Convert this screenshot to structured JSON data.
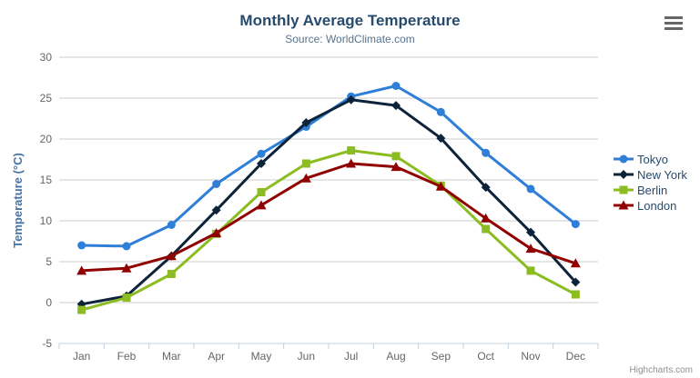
{
  "chart_data": {
    "type": "line",
    "title": "Monthly Average Temperature",
    "subtitle": "Source: WorldClimate.com",
    "xlabel": "",
    "ylabel": "Temperature (°C)",
    "categories": [
      "Jan",
      "Feb",
      "Mar",
      "Apr",
      "May",
      "Jun",
      "Jul",
      "Aug",
      "Sep",
      "Oct",
      "Nov",
      "Dec"
    ],
    "yticks": [
      -5,
      0,
      5,
      10,
      15,
      20,
      25,
      30
    ],
    "ylim": [
      -5,
      30
    ],
    "grid": true,
    "legend_position": "right",
    "series": [
      {
        "name": "Tokyo",
        "marker": "circle",
        "color": "#2f7ed8",
        "values": [
          7.0,
          6.9,
          9.5,
          14.5,
          18.2,
          21.5,
          25.2,
          26.5,
          23.3,
          18.3,
          13.9,
          9.6
        ]
      },
      {
        "name": "New York",
        "marker": "diamond",
        "color": "#0d233a",
        "values": [
          -0.2,
          0.8,
          5.7,
          11.3,
          17.0,
          22.0,
          24.8,
          24.1,
          20.1,
          14.1,
          8.6,
          2.5
        ]
      },
      {
        "name": "Berlin",
        "marker": "square",
        "color": "#8bbc21",
        "values": [
          -0.9,
          0.6,
          3.5,
          8.4,
          13.5,
          17.0,
          18.6,
          17.9,
          14.3,
          9.0,
          3.9,
          1.0
        ]
      },
      {
        "name": "London",
        "marker": "triangle",
        "color": "#910000",
        "values": [
          3.9,
          4.2,
          5.7,
          8.5,
          11.9,
          15.2,
          17.0,
          16.6,
          14.2,
          10.3,
          6.6,
          4.8
        ]
      }
    ],
    "style": {
      "grid_color": "#cccccc",
      "axis_line_color": "#c0d0e0",
      "tick_label_color": "#666666",
      "y_title_color": "#4572a7",
      "title_color": "#274b6d",
      "subtitle_color": "#55738f",
      "legend_text_color": "#274b6d"
    }
  },
  "credits": {
    "label": "Highcharts.com"
  },
  "context_menu": {
    "icon": "hamburger-menu"
  }
}
